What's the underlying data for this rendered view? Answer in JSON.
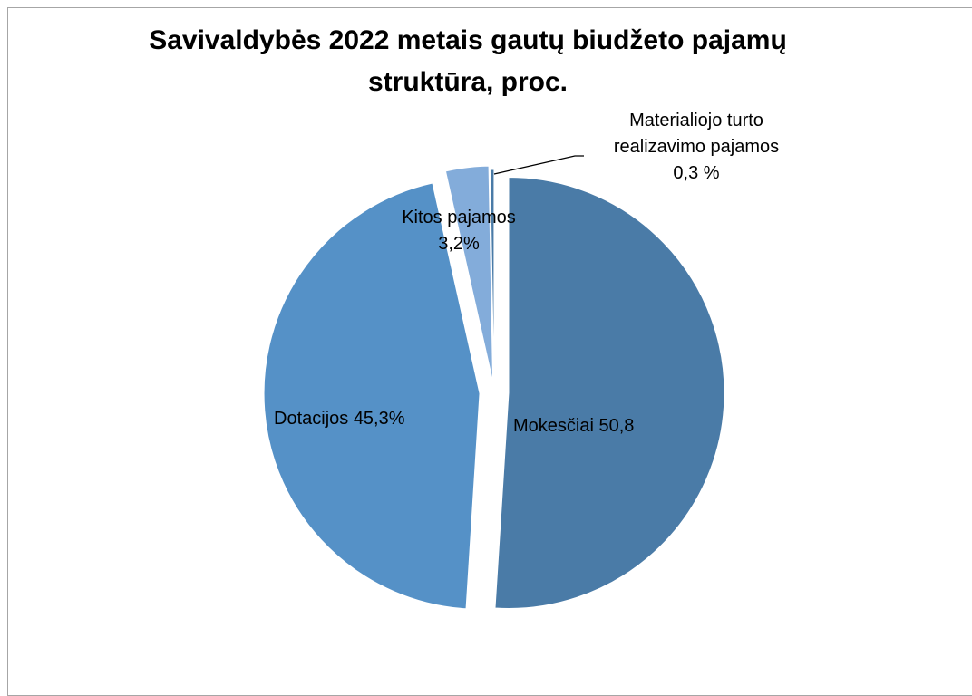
{
  "chart_data": {
    "type": "pie",
    "title": [
      "Savivaldybės 2022 metais gautų biudžeto pajamų",
      "struktūra, proc."
    ],
    "slices": [
      {
        "label": "Mokesčiai",
        "value": 50.8,
        "display": "Mokesčiai 50,8",
        "color": "#4a7ba7"
      },
      {
        "label": "Dotacijos",
        "value": 45.3,
        "display": "Dotacijos 45,3%",
        "color": "#5591c7"
      },
      {
        "label": "Kitos pajamos",
        "value": 3.2,
        "display": [
          "Kitos pajamos",
          "3,2%"
        ],
        "color": "#83acda"
      },
      {
        "label": "Materialiojo turto realizavimo pajamos",
        "value": 0.3,
        "display": [
          "Materialiojo turto",
          "realizavimo pajamos",
          "0,3 %"
        ],
        "color": "#4a7ba7"
      }
    ],
    "legend": "none"
  }
}
